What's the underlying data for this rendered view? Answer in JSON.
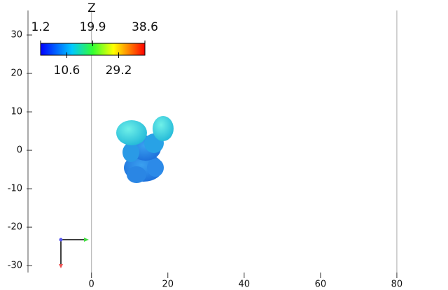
{
  "chart_data": {
    "type": "render",
    "xlim": [
      -17,
      93.4
    ],
    "ylim": [
      -31.8,
      39.1
    ],
    "xticks": [
      0,
      20,
      40,
      60,
      80
    ],
    "yticks": [
      30,
      20,
      10,
      0,
      -10,
      -20,
      -30
    ],
    "x_lines": [
      0,
      80
    ],
    "colorbar": {
      "title": "Z",
      "range": [
        1.2,
        38.6
      ],
      "top_ticks": [
        1.2,
        19.9,
        38.6
      ],
      "bottom_ticks": [
        10.6,
        29.2
      ]
    }
  }
}
